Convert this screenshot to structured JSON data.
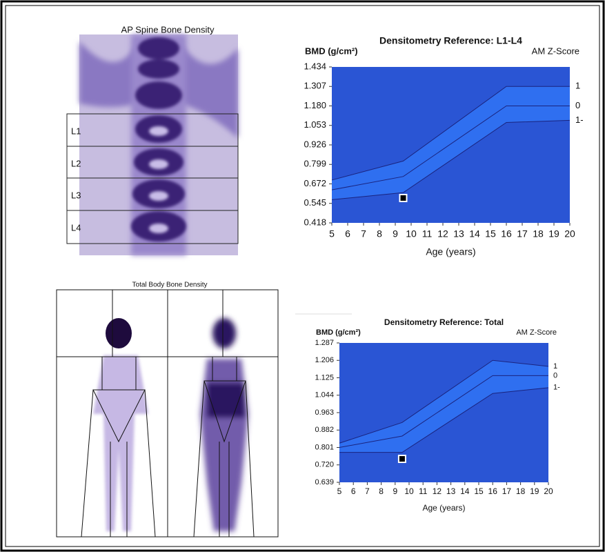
{
  "images": [
    {
      "title": "AP Spine Bone Density",
      "labels": [
        "L1",
        "L2",
        "L3",
        "L4"
      ]
    },
    {
      "title": "Total Body Bone Density"
    }
  ],
  "chart_data": [
    {
      "type": "line",
      "title": "Densitometry Reference: L1-L4",
      "y_label": "BMD (g/cm²)",
      "y2_label": "AM Z-Score",
      "x_label": "Age (years)",
      "x": [
        5,
        9.5,
        16,
        20
      ],
      "series": [
        {
          "name": "1",
          "color": "#1a237e",
          "values": [
            0.697,
            0.821,
            1.307,
            1.307
          ]
        },
        {
          "name": "0",
          "color": "#1a237e",
          "values": [
            0.633,
            0.72,
            1.18,
            1.18
          ]
        },
        {
          "name": "1-",
          "color": "#1a237e",
          "values": [
            0.569,
            0.615,
            1.072,
            1.086
          ]
        }
      ],
      "point": {
        "x": 9.5,
        "value": 0.58,
        "color": "#000000"
      },
      "band_color": "#2f6ff0",
      "background": "#2a55d4",
      "xlim": [
        5,
        20
      ],
      "xticks": [
        5,
        6,
        7,
        8,
        9,
        10,
        11,
        12,
        13,
        14,
        15,
        16,
        17,
        18,
        19,
        20
      ],
      "ylim": [
        0.418,
        1.434
      ],
      "yticks": [
        0.418,
        0.545,
        0.672,
        0.799,
        0.926,
        1.053,
        {
          "value": 1.18,
          "label": "1.180"
        },
        1.307,
        1.434
      ]
    },
    {
      "type": "line",
      "title": "Densitometry Reference: Total",
      "y_label": "BMD (g/cm²)",
      "y2_label": "AM Z-Score",
      "x_label": "Age (years)",
      "x": [
        5,
        9.5,
        16,
        20
      ],
      "series": [
        {
          "name": "1",
          "color": "#1a237e",
          "values": [
            0.821,
            0.917,
            1.206,
            1.178
          ]
        },
        {
          "name": "0",
          "color": "#1a237e",
          "values": [
            0.801,
            0.854,
            1.135,
            1.135
          ]
        },
        {
          "name": "1-",
          "color": "#1a237e",
          "values": [
            0.778,
            0.778,
            1.052,
            1.079
          ]
        }
      ],
      "point": {
        "x": 9.5,
        "value": 0.748,
        "color": "#000000"
      },
      "band_color": "#2f6ff0",
      "background": "#2a55d4",
      "xlim": [
        5,
        20
      ],
      "xticks": [
        5,
        6,
        7,
        8,
        9,
        10,
        11,
        12,
        13,
        14,
        15,
        16,
        17,
        18,
        19,
        20
      ],
      "ylim": [
        0.639,
        1.287
      ],
      "yticks": [
        0.639,
        {
          "value": 0.72,
          "label": "0.720"
        },
        0.801,
        0.882,
        0.963,
        1.044,
        1.125,
        1.206,
        1.287
      ]
    }
  ]
}
